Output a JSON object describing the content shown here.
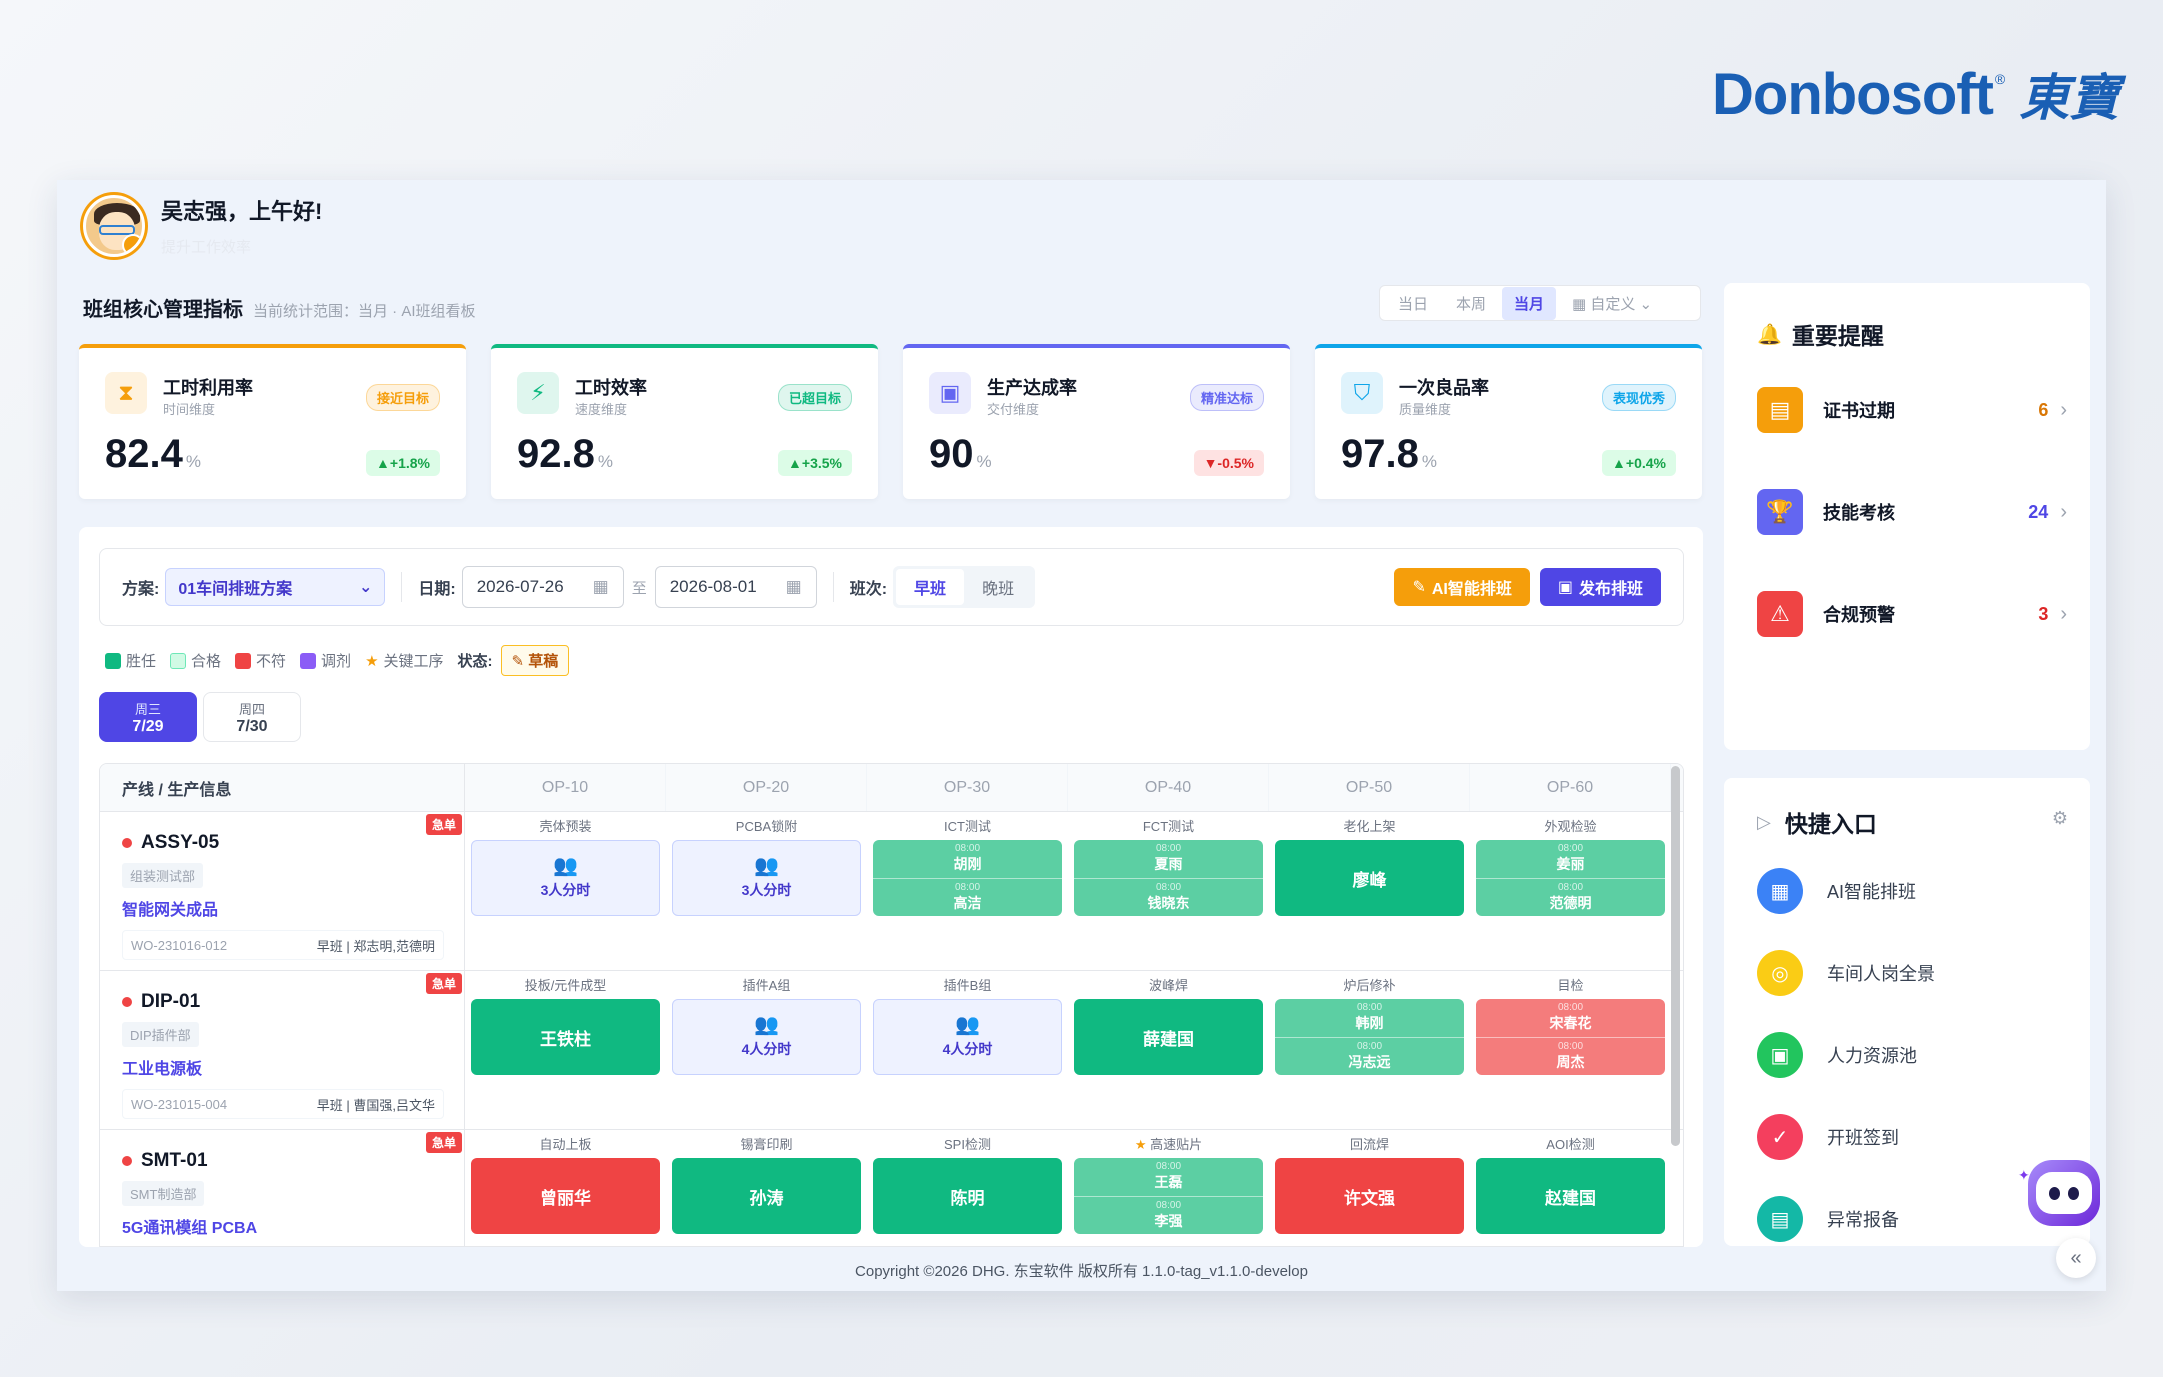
{
  "brand": {
    "en": "Donbosoft",
    "reg": "®",
    "zh": "東寶"
  },
  "user": {
    "greeting": "吴志强，上午好!",
    "subtitle": "提升工作效率"
  },
  "section": {
    "title": "班组核心管理指标",
    "scope": "当前统计范围：当月 · AI班组看板"
  },
  "period_tabs": [
    {
      "label": "当日",
      "active": false
    },
    {
      "label": "本周",
      "active": false
    },
    {
      "label": "当月",
      "active": true
    },
    {
      "label": "▦ 自定义 ⌄",
      "active": false
    }
  ],
  "kpis": [
    {
      "title": "工时利用率",
      "sub": "时间维度",
      "tag": "接近目标",
      "value": "82.4",
      "unit": "%",
      "change": "▲+1.8%",
      "accent": "#f59e0b",
      "icon": "hourglass-icon"
    },
    {
      "title": "工时效率",
      "sub": "速度维度",
      "tag": "已超目标",
      "value": "92.8",
      "unit": "%",
      "change": "▲+3.5%",
      "accent": "#10b981",
      "icon": "bolt-icon"
    },
    {
      "title": "生产达成率",
      "sub": "交付维度",
      "tag": "精准达标",
      "value": "90",
      "unit": "%",
      "change": "▼-0.5%",
      "accent": "#6366f1",
      "icon": "cube-icon"
    },
    {
      "title": "一次良品率",
      "sub": "质量维度",
      "tag": "表现优秀",
      "value": "97.8",
      "unit": "%",
      "change": "▲+0.4%",
      "accent": "#0ea5e9",
      "icon": "shield-icon"
    }
  ],
  "filter": {
    "plan_label": "方案:",
    "plan_value": "01车间排班方案",
    "date_label": "日期:",
    "date_from": "2026-07-26",
    "date_to": "2026-08-01",
    "date_sep": "至",
    "shift_label": "班次:",
    "shift_options": [
      "早班",
      "晚班"
    ],
    "ai_button": "AI智能排班",
    "publish_button": "发布排班"
  },
  "legend": {
    "items": [
      {
        "label": "胜任",
        "color": "#10b981"
      },
      {
        "label": "合格",
        "color": "#d1fae5"
      },
      {
        "label": "不符",
        "color": "#ef4444"
      },
      {
        "label": "调剂",
        "color": "#8b5cf6"
      }
    ],
    "key_op": "关键工序",
    "status_label": "状态:",
    "status_value": "草稿"
  },
  "days": [
    {
      "week": "周三",
      "date": "7/29",
      "active": true
    },
    {
      "week": "周四",
      "date": "7/30",
      "active": false
    }
  ],
  "grid": {
    "header_first": "产线 / 生产信息",
    "ops": [
      "OP-10",
      "OP-20",
      "OP-30",
      "OP-40",
      "OP-50",
      "OP-60"
    ],
    "rows": [
      {
        "urgent": "急单",
        "line": "ASSY-05",
        "dept": "组装测试部",
        "product": "智能网关成品",
        "wo": "WO-231016-012",
        "shift": "早班 | 郑志明,范德明",
        "cells": [
          {
            "op": "壳体预装",
            "type": "e",
            "text": "3人分时"
          },
          {
            "op": "PCBA锁附",
            "type": "e",
            "text": "3人分时"
          },
          {
            "op": "ICT测试",
            "type": "lg",
            "a": "胡刚",
            "b": "高洁",
            "ta": "08:00",
            "tb": "08:00"
          },
          {
            "op": "FCT测试",
            "type": "lg",
            "a": "夏雨",
            "b": "钱晓东",
            "ta": "08:00",
            "tb": "08:00"
          },
          {
            "op": "老化上架",
            "type": "g",
            "text": "廖峰"
          },
          {
            "op": "外观检验",
            "type": "lg",
            "a": "姜丽",
            "b": "范德明",
            "ta": "08:00",
            "tb": "08:00"
          }
        ]
      },
      {
        "urgent": "急单",
        "line": "DIP-01",
        "dept": "DIP插件部",
        "product": "工业电源板",
        "wo": "WO-231015-004",
        "shift": "早班 | 曹国强,吕文华",
        "cells": [
          {
            "op": "投板/元件成型",
            "type": "g",
            "text": "王铁柱"
          },
          {
            "op": "插件A组",
            "type": "e",
            "text": "4人分时"
          },
          {
            "op": "插件B组",
            "type": "e",
            "text": "4人分时"
          },
          {
            "op": "波峰焊",
            "type": "g",
            "text": "薛建国"
          },
          {
            "op": "炉后修补",
            "type": "lg",
            "a": "韩刚",
            "b": "冯志远",
            "ta": "08:00",
            "tb": "08:00"
          },
          {
            "op": "目检",
            "type": "lr",
            "a": "宋春花",
            "b": "周杰",
            "ta": "08:00",
            "tb": "08:00"
          }
        ]
      },
      {
        "urgent": "急单",
        "line": "SMT-01",
        "dept": "SMT制造部",
        "product": "5G通讯模组 PCBA",
        "wo": "",
        "shift": "",
        "cells": [
          {
            "op": "自动上板",
            "type": "r",
            "text": "曾丽华"
          },
          {
            "op": "锡膏印刷",
            "type": "g",
            "text": "孙涛"
          },
          {
            "op": "SPI检测",
            "type": "g",
            "text": "陈明"
          },
          {
            "op": "高速贴片",
            "type": "lg",
            "a": "王磊",
            "b": "李强",
            "ta": "08:00",
            "tb": "08:00",
            "key": true
          },
          {
            "op": "回流焊",
            "type": "r",
            "text": "许文强"
          },
          {
            "op": "AOI检测",
            "type": "g",
            "text": "赵建国"
          }
        ]
      }
    ]
  },
  "reminders": {
    "title": "重要提醒",
    "items": [
      {
        "label": "证书过期",
        "count": "6",
        "color": "#f59e0b",
        "count_color": "#d97706",
        "icon": "id-card-icon"
      },
      {
        "label": "技能考核",
        "count": "24",
        "color": "#6366f1",
        "count_color": "#4f46e5",
        "icon": "trophy-icon"
      },
      {
        "label": "合规预警",
        "count": "3",
        "color": "#ef4444",
        "count_color": "#dc2626",
        "icon": "warning-icon"
      }
    ]
  },
  "quick": {
    "title": "快捷入口",
    "items": [
      {
        "label": "AI智能排班",
        "color": "#3b82f6",
        "icon": "calendar-icon"
      },
      {
        "label": "车间人岗全景",
        "color": "#facc15",
        "icon": "person-search-icon"
      },
      {
        "label": "人力资源池",
        "color": "#22c55e",
        "icon": "person-card-icon"
      },
      {
        "label": "开班签到",
        "color": "#f43f5e",
        "icon": "signin-icon"
      },
      {
        "label": "异常报备",
        "color": "#14b8a6",
        "icon": "report-icon"
      }
    ]
  },
  "footer": "Copyright ©2026 DHG. 东宝软件 版权所有 1.1.0-tag_v1.1.0-develop"
}
